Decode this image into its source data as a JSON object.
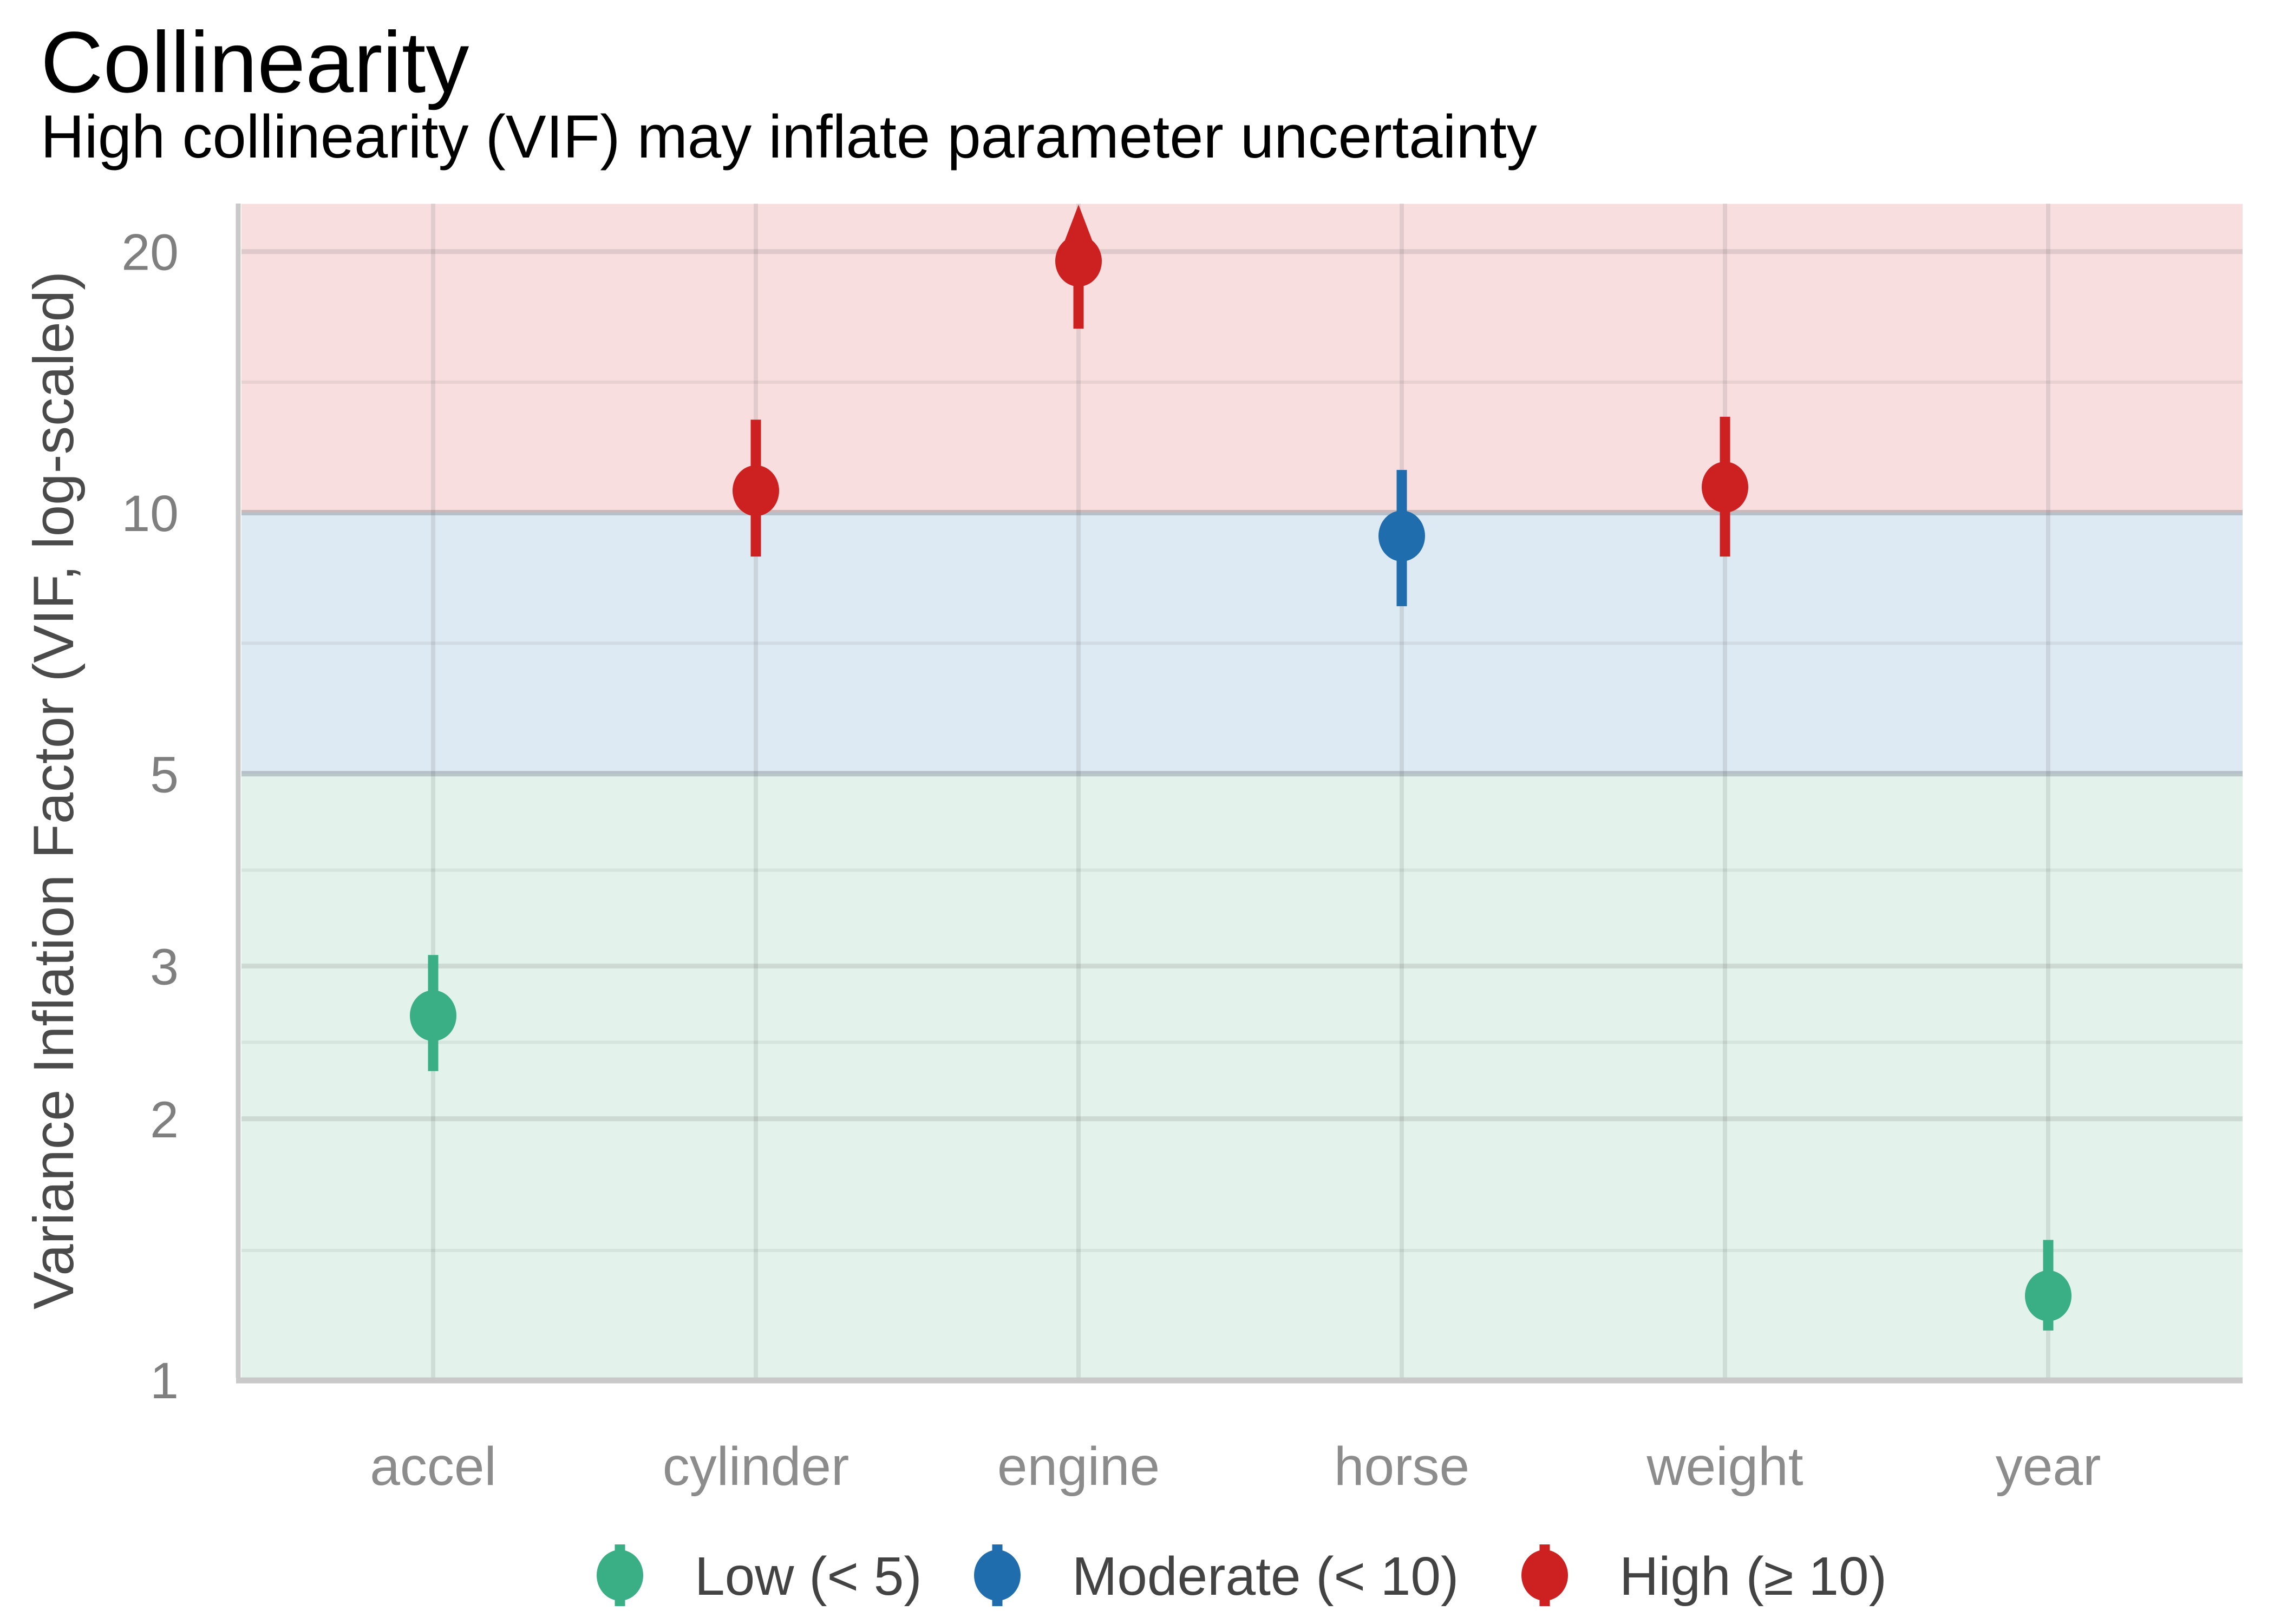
{
  "chart_data": {
    "type": "pointrange",
    "title": "Collinearity",
    "subtitle": "High collinearity (VIF) may inflate parameter uncertainty",
    "ylabel": "Variance Inflation Factor (VIF, log-scaled)",
    "scale": "log10",
    "ylim": [
      1,
      22.7
    ],
    "grid": "on",
    "categories": [
      "accel",
      "cylinder",
      "engine",
      "horse",
      "weight",
      "year"
    ],
    "y_ticks": [
      20,
      10,
      5,
      3,
      2,
      1
    ],
    "y_tick_labels": [
      "20",
      "10",
      "5",
      "3",
      "2",
      "1"
    ],
    "y_minor_gridlines": [
      14.14,
      7.07,
      3.87,
      2.45,
      1.41
    ],
    "points": [
      {
        "label": "accel",
        "vif": 2.63,
        "ci_low": 2.27,
        "ci_high": 3.09,
        "ci_high_offscale": false,
        "level": "low"
      },
      {
        "label": "cylinder",
        "vif": 10.6,
        "ci_low": 8.9,
        "ci_high": 12.8,
        "ci_high_offscale": false,
        "level": "high"
      },
      {
        "label": "engine",
        "vif": 19.5,
        "ci_low": 16.3,
        "ci_high": null,
        "ci_high_offscale": true,
        "level": "high"
      },
      {
        "label": "horse",
        "vif": 9.4,
        "ci_low": 7.8,
        "ci_high": 11.2,
        "ci_high_offscale": false,
        "level": "moderate"
      },
      {
        "label": "weight",
        "vif": 10.7,
        "ci_low": 8.9,
        "ci_high": 12.9,
        "ci_high_offscale": false,
        "level": "high"
      },
      {
        "label": "year",
        "vif": 1.25,
        "ci_low": 1.14,
        "ci_high": 1.45,
        "ci_high_offscale": false,
        "level": "low"
      }
    ],
    "bands": [
      {
        "name": "low",
        "from": 1,
        "to": 5,
        "color": "#e3f3ec"
      },
      {
        "name": "moderate",
        "from": 5,
        "to": 10,
        "color": "#dde9f3"
      },
      {
        "name": "high",
        "from": 10,
        "to": 22.7,
        "color": "#f9dee0"
      }
    ],
    "level_colors": {
      "low": "#3aae85",
      "moderate": "#1f6dad",
      "high": "#cd2121"
    },
    "legend": [
      {
        "label": "Low (< 5)",
        "level": "low",
        "color": "#3aae85"
      },
      {
        "label": "Moderate (< 10)",
        "level": "moderate",
        "color": "#1f6dad"
      },
      {
        "label": "High (≥ 10)",
        "level": "high",
        "color": "#cd2121"
      }
    ],
    "legend_position": "bottom",
    "axis_line_color": "#c9c9c9"
  }
}
